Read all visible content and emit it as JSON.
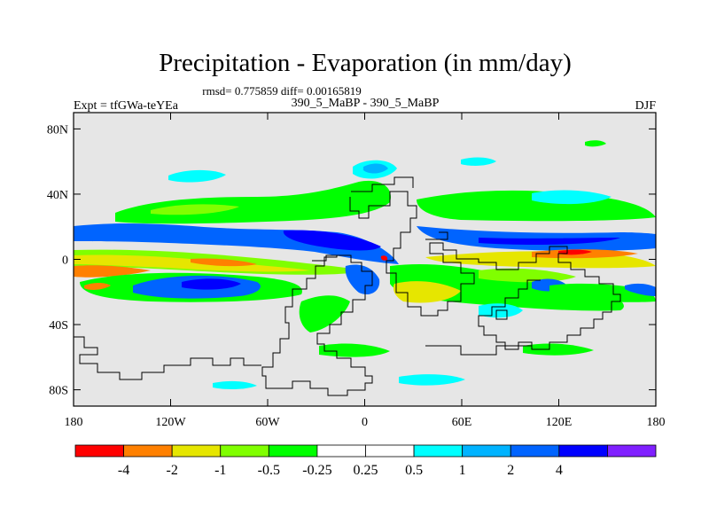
{
  "title": "Precipitation - Evaporation (in mm/day)",
  "stats": "rmsd= 0.775859 diff= 0.00165819",
  "left_label": "Expt = tfGWa-teYEa",
  "center_label": "390_5_MaBP - 390_5_MaBP",
  "right_label": "DJF",
  "map": {
    "lon_ticks": [
      {
        "value": -180,
        "label": "180"
      },
      {
        "value": -120,
        "label": "120W"
      },
      {
        "value": -60,
        "label": "60W"
      },
      {
        "value": 0,
        "label": "0"
      },
      {
        "value": 60,
        "label": "60E"
      },
      {
        "value": 120,
        "label": "120E"
      },
      {
        "value": 180,
        "label": "180"
      }
    ],
    "lat_ticks": [
      {
        "value": 80,
        "label": "80N"
      },
      {
        "value": 40,
        "label": "40N"
      },
      {
        "value": 0,
        "label": "0"
      },
      {
        "value": -40,
        "label": "40S"
      },
      {
        "value": -80,
        "label": "80S"
      }
    ],
    "lon_range": [
      -180,
      180
    ],
    "lat_range": [
      -90,
      90
    ],
    "background_color": "#e6e6e6"
  },
  "colorbar": {
    "colors": [
      "#ff0000",
      "#ff8000",
      "#e6e600",
      "#80ff00",
      "#00ff00",
      "#ffffff",
      "#ffffff",
      "#00ffff",
      "#00b3ff",
      "#0064ff",
      "#0000ff",
      "#8020ff"
    ],
    "labels": [
      "-4",
      "-2",
      "-1",
      "-0.5",
      "-0.25",
      "0.25",
      "0.5",
      "1",
      "2",
      "4"
    ]
  }
}
